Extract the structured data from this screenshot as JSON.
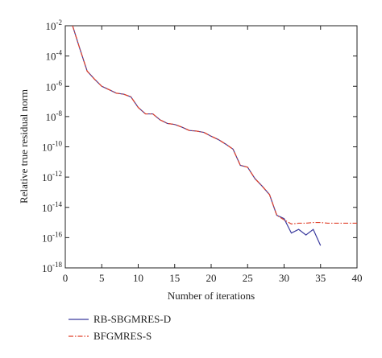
{
  "chart_data": {
    "type": "line",
    "x_label": "Number of iterations",
    "y_label": "Relative true residual norm",
    "x": [
      1,
      2,
      3,
      4,
      5,
      6,
      7,
      8,
      9,
      10,
      11,
      12,
      13,
      14,
      15,
      16,
      17,
      18,
      19,
      20,
      21,
      22,
      23,
      24,
      25,
      26,
      27,
      28,
      29,
      30,
      31,
      32,
      33,
      34,
      35,
      36,
      37,
      38,
      39,
      40
    ],
    "series": [
      {
        "name": "RB-SBGMRES-D",
        "color": "#3b3b9e",
        "dash": "solid",
        "values": [
          0.01,
          0.0003,
          1e-05,
          3e-06,
          1e-06,
          6e-07,
          3.5e-07,
          3e-07,
          2e-07,
          4e-08,
          1.5e-08,
          1.5e-08,
          6e-09,
          3.5e-09,
          3e-09,
          2e-09,
          1.2e-09,
          1.1e-09,
          9e-10,
          5e-10,
          3e-10,
          1.5e-10,
          7e-11,
          6e-12,
          4.5e-12,
          8e-13,
          2.5e-13,
          7e-14,
          3e-15,
          1.8e-15,
          2e-16,
          3.5e-16,
          1.5e-16,
          3.5e-16,
          3e-17,
          null,
          null,
          null,
          null,
          null
        ]
      },
      {
        "name": "BFGMRES-S",
        "color": "#e0402a",
        "dash": "dashdot",
        "values": [
          0.01,
          0.0003,
          1e-05,
          3e-06,
          1e-06,
          6e-07,
          3.5e-07,
          3e-07,
          2e-07,
          4e-08,
          1.5e-08,
          1.5e-08,
          6e-09,
          3.5e-09,
          3e-09,
          2e-09,
          1.2e-09,
          1.1e-09,
          9e-10,
          5e-10,
          3e-10,
          1.5e-10,
          7e-11,
          6e-12,
          4.5e-12,
          8e-13,
          2.5e-13,
          7e-14,
          3e-15,
          1.5e-15,
          8e-16,
          9e-16,
          9e-16,
          1e-15,
          1e-15,
          9e-16,
          9e-16,
          9e-16,
          9e-16,
          9e-16
        ]
      }
    ],
    "xlim": [
      0,
      40
    ],
    "xticks": [
      0,
      5,
      10,
      15,
      20,
      25,
      30,
      35,
      40
    ],
    "ylim": [
      1e-18,
      0.01
    ],
    "log_y": true,
    "yticks": [
      {
        "value": 0.01,
        "label": "10^-2"
      },
      {
        "value": 0.0001,
        "label": "10^-4"
      },
      {
        "value": 1e-06,
        "label": "10^-6"
      },
      {
        "value": 1e-08,
        "label": "10^-8"
      },
      {
        "value": 1e-10,
        "label": "10^-10"
      },
      {
        "value": 1e-12,
        "label": "10^-12"
      },
      {
        "value": 1e-14,
        "label": "10^-14"
      },
      {
        "value": 1e-16,
        "label": "10^-16"
      },
      {
        "value": 1e-18,
        "label": "10^-18"
      }
    ],
    "legend": "bottom-left"
  }
}
